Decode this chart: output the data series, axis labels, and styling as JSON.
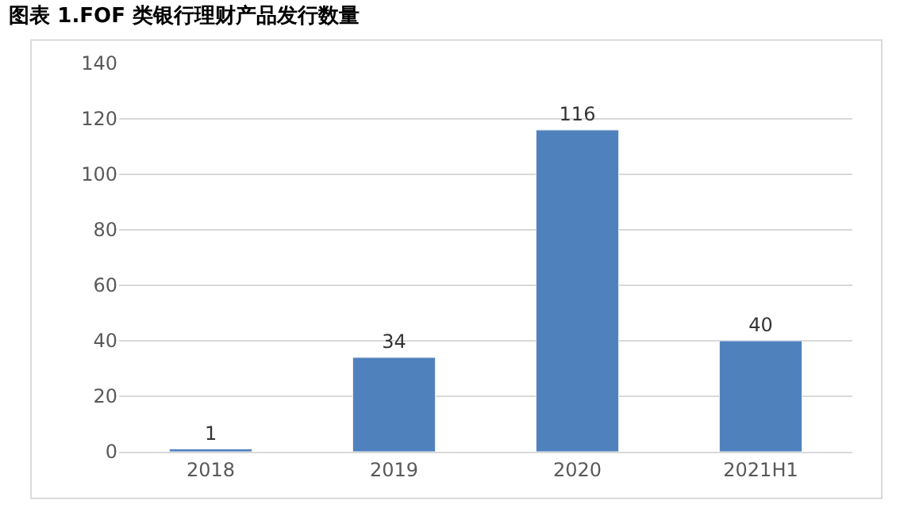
{
  "chart_data": {
    "type": "bar",
    "title": "图表 1.FOF 类银行理财产品发行数量",
    "categories": [
      "2018",
      "2019",
      "2020",
      "2021H1"
    ],
    "values": [
      1,
      34,
      116,
      40
    ],
    "color": "#4f81bd",
    "ylim": [
      0,
      140
    ],
    "yticks": [
      0,
      20,
      40,
      60,
      80,
      100,
      120,
      140
    ],
    "grid": "y",
    "data_labels": true
  }
}
